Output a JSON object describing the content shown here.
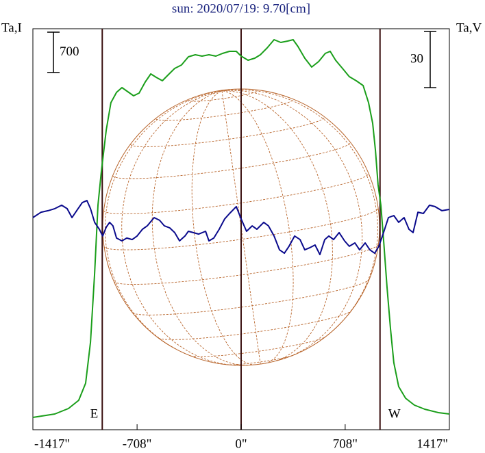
{
  "chart_data": {
    "type": "line",
    "title": "sun: 2020/07/19: 9.70[cm]",
    "ylabel": "Ta,I",
    "y2label": "Ta,V",
    "xlim": [
      -1417,
      1417
    ],
    "xticks": [
      {
        "value": -1417,
        "label": "-1417\""
      },
      {
        "value": -708,
        "label": "-708\""
      },
      {
        "value": 0,
        "label": "0\""
      },
      {
        "value": 708,
        "label": "708\""
      },
      {
        "value": 1417,
        "label": "1417\""
      }
    ],
    "ylim": [
      0,
      6950
    ],
    "y2lim": [
      0,
      214
    ],
    "y_scale_bar": 700,
    "y2_scale_bar": 30,
    "limb_lines": [
      -945,
      0,
      945
    ],
    "annotations": [
      "E",
      "W"
    ],
    "series": [
      {
        "color": "#1a9e1a",
        "x": [
          -1417,
          -1268,
          -1175,
          -1105,
          -1058,
          -1025,
          -997,
          -974,
          -951,
          -918,
          -886,
          -848,
          -811,
          -778,
          -732,
          -694,
          -653,
          -615,
          -578,
          -536,
          -499,
          -452,
          -406,
          -359,
          -312,
          -266,
          -219,
          -172,
          -126,
          -79,
          -33,
          0,
          47,
          93,
          131,
          177,
          224,
          270,
          317,
          354,
          387,
          433,
          480,
          527,
          573,
          606,
          643,
          690,
          736,
          783,
          830,
          867,
          895,
          914,
          932,
          951,
          969,
          993,
          1016,
          1039,
          1072,
          1119,
          1179,
          1249,
          1342,
          1417
        ],
        "values": [
          213,
          273,
          368,
          510,
          806,
          1518,
          2704,
          3890,
          4483,
          5195,
          5669,
          5847,
          5930,
          5871,
          5788,
          5835,
          6025,
          6167,
          6108,
          6049,
          6143,
          6262,
          6321,
          6464,
          6499,
          6476,
          6499,
          6476,
          6523,
          6559,
          6559,
          6476,
          6404,
          6440,
          6499,
          6618,
          6760,
          6713,
          6736,
          6760,
          6642,
          6440,
          6286,
          6381,
          6523,
          6559,
          6404,
          6262,
          6120,
          6049,
          5966,
          5669,
          5313,
          4839,
          4246,
          3890,
          3297,
          2467,
          1755,
          1162,
          747,
          546,
          427,
          356,
          297,
          273
        ]
      },
      {
        "color": "#0a0a8c",
        "axis": "y2",
        "x": [
          -1417,
          -1361,
          -1314,
          -1268,
          -1221,
          -1184,
          -1151,
          -1119,
          -1081,
          -1049,
          -1025,
          -997,
          -965,
          -942,
          -918,
          -895,
          -872,
          -848,
          -811,
          -778,
          -741,
          -708,
          -671,
          -639,
          -592,
          -555,
          -522,
          -485,
          -452,
          -419,
          -382,
          -359,
          -326,
          -289,
          -242,
          -219,
          -186,
          -149,
          -112,
          -79,
          -33,
          0,
          37,
          75,
          107,
          154,
          186,
          224,
          261,
          294,
          326,
          364,
          401,
          433,
          466,
          503,
          536,
          569,
          597,
          629,
          667,
          704,
          736,
          774,
          806,
          844,
          876,
          909,
          937,
          969,
          1002,
          1039,
          1072,
          1109,
          1142,
          1170,
          1203,
          1240,
          1282,
          1319,
          1366,
          1417
        ],
        "values": [
          113.2,
          116.1,
          116.9,
          118.0,
          119.8,
          118.0,
          113.2,
          116.9,
          121.2,
          122.3,
          118.0,
          110.7,
          107.0,
          103.4,
          108.1,
          110.7,
          108.8,
          102.3,
          100.8,
          102.3,
          101.5,
          103.4,
          107.0,
          108.8,
          113.2,
          111.8,
          108.8,
          107.7,
          105.2,
          100.8,
          103.4,
          105.9,
          105.2,
          104.4,
          105.9,
          100.8,
          102.3,
          107.0,
          112.5,
          115.4,
          119.1,
          112.5,
          105.9,
          108.8,
          107.0,
          110.7,
          108.8,
          103.4,
          96.0,
          94.2,
          97.9,
          103.4,
          101.5,
          96.0,
          97.1,
          98.6,
          93.5,
          101.5,
          103.4,
          101.5,
          105.2,
          100.8,
          97.9,
          99.7,
          96.0,
          99.7,
          96.0,
          94.2,
          97.9,
          105.2,
          113.2,
          114.3,
          110.7,
          113.2,
          107.0,
          105.2,
          116.1,
          115.4,
          119.8,
          119.1,
          116.9,
          117.6
        ]
      }
    ]
  }
}
